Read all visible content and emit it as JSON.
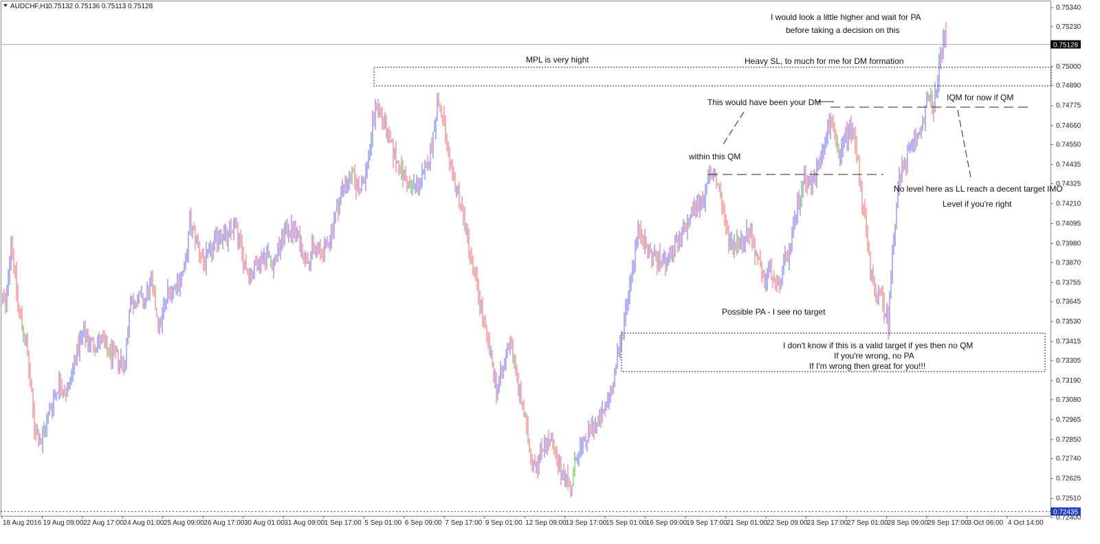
{
  "header": {
    "symbol": "AUDCHF,H1",
    "ohlc": "0.75132 0.75136 0.75113 0.75128"
  },
  "chart_data": {
    "type": "candlestick",
    "symbol": "AUDCHF",
    "timeframe": "H1",
    "ylim": [
      0.7241,
      0.7536
    ],
    "y_ticks": [
      "0.75340",
      "0.75230",
      "0.75000",
      "0.74890",
      "0.74775",
      "0.74660",
      "0.74550",
      "0.74435",
      "0.74325",
      "0.74210",
      "0.74095",
      "0.73980",
      "0.73870",
      "0.73755",
      "0.73645",
      "0.73530",
      "0.73415",
      "0.73305",
      "0.73190",
      "0.73080",
      "0.72965",
      "0.72850",
      "0.72740",
      "0.72625",
      "0.72510",
      "0.72400"
    ],
    "x_ticks": [
      "18 Aug 2016",
      "19 Aug 09:00",
      "22 Aug 17:00",
      "24 Aug 01:00",
      "25 Aug 09:00",
      "26 Aug 17:00",
      "30 Aug 01:00",
      "31 Aug 09:00",
      "1 Sep 17:00",
      "5 Sep 01:00",
      "6 Sep 09:00",
      "7 Sep 17:00",
      "9 Sep 01:00",
      "12 Sep 09:00",
      "13 Sep 17:00",
      "15 Sep 01:00",
      "16 Sep 09:00",
      "19 Sep 17:00",
      "21 Sep 01:00",
      "22 Sep 09:00",
      "23 Sep 17:00",
      "27 Sep 01:00",
      "28 Sep 09:00",
      "29 Sep 17:00",
      "3 Oct 06:00",
      "4 Oct 14:00"
    ],
    "current_price": {
      "value": 0.75128,
      "label": "0.75128"
    },
    "level_marker": {
      "value": 0.72435,
      "label": "0.72435"
    },
    "bull_color": "#6666ee",
    "bear_color": "#ee6666",
    "doji_color": "#33bb33",
    "path": [
      [
        0,
        0.7373
      ],
      [
        8,
        0.736
      ],
      [
        16,
        0.7402
      ],
      [
        26,
        0.7362
      ],
      [
        38,
        0.734
      ],
      [
        50,
        0.7293
      ],
      [
        60,
        0.7283
      ],
      [
        72,
        0.7302
      ],
      [
        86,
        0.7318
      ],
      [
        98,
        0.7312
      ],
      [
        110,
        0.7334
      ],
      [
        122,
        0.7345
      ],
      [
        134,
        0.734
      ],
      [
        146,
        0.7342
      ],
      [
        160,
        0.7334
      ],
      [
        172,
        0.7332
      ],
      [
        182,
        0.7328
      ],
      [
        188,
        0.7362
      ],
      [
        200,
        0.7367
      ],
      [
        210,
        0.7364
      ],
      [
        220,
        0.7375
      ],
      [
        232,
        0.735
      ],
      [
        244,
        0.737
      ],
      [
        258,
        0.7375
      ],
      [
        270,
        0.7385
      ],
      [
        276,
        0.741
      ],
      [
        284,
        0.7402
      ],
      [
        296,
        0.7387
      ],
      [
        306,
        0.7392
      ],
      [
        320,
        0.7405
      ],
      [
        330,
        0.74
      ],
      [
        342,
        0.741
      ],
      [
        354,
        0.7388
      ],
      [
        364,
        0.738
      ],
      [
        376,
        0.7388
      ],
      [
        388,
        0.7392
      ],
      [
        398,
        0.7386
      ],
      [
        410,
        0.74
      ],
      [
        420,
        0.7408
      ],
      [
        432,
        0.7402
      ],
      [
        444,
        0.739
      ],
      [
        458,
        0.7395
      ],
      [
        470,
        0.7392
      ],
      [
        480,
        0.7402
      ],
      [
        490,
        0.7418
      ],
      [
        500,
        0.7432
      ],
      [
        512,
        0.7436
      ],
      [
        522,
        0.743
      ],
      [
        532,
        0.7438
      ],
      [
        540,
        0.746
      ],
      [
        548,
        0.748
      ],
      [
        556,
        0.747
      ],
      [
        564,
        0.746
      ],
      [
        572,
        0.745
      ],
      [
        584,
        0.744
      ],
      [
        596,
        0.743
      ],
      [
        608,
        0.7432
      ],
      [
        618,
        0.7438
      ],
      [
        628,
        0.7455
      ],
      [
        636,
        0.748
      ],
      [
        644,
        0.747
      ],
      [
        654,
        0.744
      ],
      [
        666,
        0.7428
      ],
      [
        678,
        0.7405
      ],
      [
        690,
        0.738
      ],
      [
        700,
        0.736
      ],
      [
        712,
        0.7335
      ],
      [
        722,
        0.7315
      ],
      [
        732,
        0.7325
      ],
      [
        742,
        0.7345
      ],
      [
        752,
        0.7318
      ],
      [
        762,
        0.73
      ],
      [
        772,
        0.7275
      ],
      [
        782,
        0.7272
      ],
      [
        792,
        0.7284
      ],
      [
        802,
        0.7283
      ],
      [
        812,
        0.7268
      ],
      [
        822,
        0.7266
      ],
      [
        830,
        0.7256
      ],
      [
        840,
        0.7278
      ],
      [
        850,
        0.7282
      ],
      [
        860,
        0.7292
      ],
      [
        870,
        0.7294
      ],
      [
        880,
        0.7302
      ],
      [
        890,
        0.7315
      ],
      [
        900,
        0.7335
      ],
      [
        910,
        0.736
      ],
      [
        920,
        0.7385
      ],
      [
        930,
        0.7408
      ],
      [
        940,
        0.7395
      ],
      [
        952,
        0.739
      ],
      [
        964,
        0.7386
      ],
      [
        976,
        0.7392
      ],
      [
        988,
        0.7398
      ],
      [
        1000,
        0.741
      ],
      [
        1012,
        0.742
      ],
      [
        1024,
        0.7425
      ],
      [
        1032,
        0.7436
      ],
      [
        1040,
        0.7438
      ],
      [
        1048,
        0.7425
      ],
      [
        1056,
        0.7405
      ],
      [
        1066,
        0.7397
      ],
      [
        1078,
        0.74
      ],
      [
        1090,
        0.7405
      ],
      [
        1100,
        0.7392
      ],
      [
        1110,
        0.7375
      ],
      [
        1120,
        0.7383
      ],
      [
        1130,
        0.7372
      ],
      [
        1140,
        0.7385
      ],
      [
        1150,
        0.7395
      ],
      [
        1160,
        0.742
      ],
      [
        1170,
        0.7438
      ],
      [
        1180,
        0.7432
      ],
      [
        1190,
        0.7442
      ],
      [
        1200,
        0.746
      ],
      [
        1210,
        0.747
      ],
      [
        1220,
        0.7445
      ],
      [
        1230,
        0.746
      ],
      [
        1240,
        0.7465
      ],
      [
        1248,
        0.7445
      ],
      [
        1258,
        0.741
      ],
      [
        1266,
        0.738
      ],
      [
        1274,
        0.737
      ],
      [
        1284,
        0.7364
      ],
      [
        1292,
        0.7352
      ],
      [
        1298,
        0.7395
      ],
      [
        1306,
        0.743
      ],
      [
        1316,
        0.7445
      ],
      [
        1328,
        0.7455
      ],
      [
        1338,
        0.7462
      ],
      [
        1348,
        0.748
      ],
      [
        1358,
        0.7478
      ],
      [
        1364,
        0.749
      ],
      [
        1368,
        0.7505
      ],
      [
        1372,
        0.752
      ],
      [
        1376,
        0.7512
      ]
    ]
  },
  "annotations": {
    "mpl": "MPL is very hight",
    "heavy_sl": "Heavy SL, to much for me for DM formation",
    "look_higher_1": "I would look a little higher and wait for PA",
    "look_higher_2": "before taking a decision on this",
    "dm": "This would have been your DM",
    "within_qm": "within this QM",
    "iqm": "IQM for now if QM",
    "no_level": "No level here as LL reach a decent target IMO",
    "level_right": "Level if you're right",
    "possible_pa": "Possible PA - I see no target",
    "valid_1": "I don't know if this is a valid target if yes then no QM",
    "valid_2": "If you're wrong, no PA",
    "valid_3": "If I'm wrong then great for you!!!"
  }
}
